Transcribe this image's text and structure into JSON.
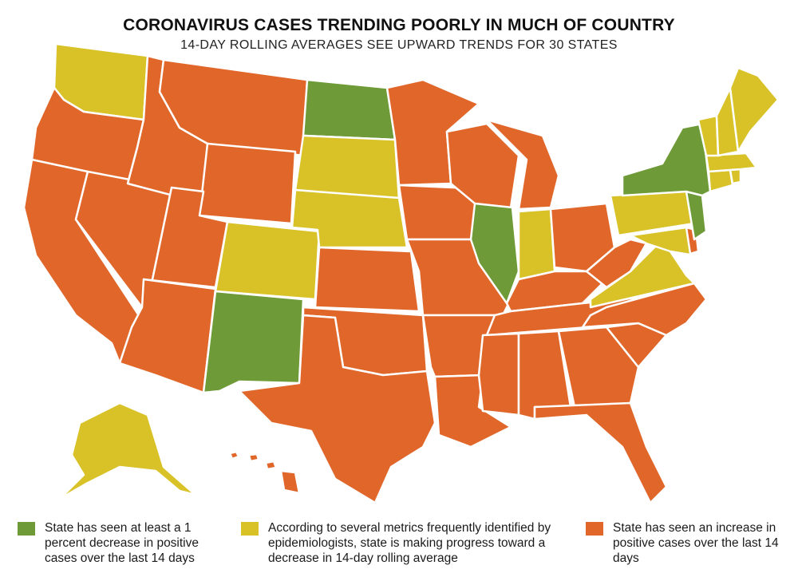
{
  "title": "CORONAVIRUS CASES TRENDING POORLY IN MUCH OF COUNTRY",
  "subtitle": "14-DAY ROLLING AVERAGES SEE UPWARD TRENDS FOR 30 STATES",
  "colors": {
    "decrease": "#6e9a38",
    "progress": "#d8c227",
    "increase": "#e0662a",
    "border": "#ffffff"
  },
  "legend": {
    "decrease": "State has seen at least a 1 percent decrease in positive cases over the last 14 days",
    "progress": "According to several metrics frequently identified by epidemiologists, state is making progress toward a decrease in 14-day rolling average",
    "increase": "State has seen an increase in positive cases over the last 14 days"
  },
  "states": {
    "WA": "progress",
    "OR": "increase",
    "CA": "increase",
    "NV": "increase",
    "ID": "increase",
    "MT": "increase",
    "WY": "increase",
    "UT": "increase",
    "AZ": "increase",
    "CO": "progress",
    "NM": "decrease",
    "ND": "decrease",
    "SD": "progress",
    "NE": "progress",
    "KS": "increase",
    "OK": "increase",
    "TX": "increase",
    "MN": "increase",
    "IA": "increase",
    "MO": "increase",
    "AR": "increase",
    "LA": "increase",
    "WI": "increase",
    "IL": "decrease",
    "MI": "increase",
    "IN": "progress",
    "OH": "increase",
    "KY": "increase",
    "TN": "increase",
    "MS": "increase",
    "AL": "increase",
    "GA": "increase",
    "FL": "increase",
    "SC": "increase",
    "NC": "increase",
    "VA": "progress",
    "WV": "increase",
    "MD": "progress",
    "DE": "increase",
    "PA": "progress",
    "NJ": "decrease",
    "NY": "decrease",
    "CT": "progress",
    "RI": "progress",
    "MA": "progress",
    "VT": "progress",
    "NH": "progress",
    "ME": "progress",
    "AK": "progress",
    "HI": "increase"
  }
}
